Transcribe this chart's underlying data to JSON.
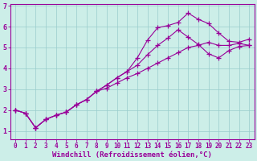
{
  "background_color": "#cceee8",
  "grid_color": "#99cccc",
  "line_color": "#990099",
  "xlabel": "Windchill (Refroidissement éolien,°C)",
  "xlim": [
    -0.5,
    23.5
  ],
  "ylim": [
    0.6,
    7.1
  ],
  "yticks": [
    1,
    2,
    3,
    4,
    5,
    6,
    7
  ],
  "xticks": [
    0,
    1,
    2,
    3,
    4,
    5,
    6,
    7,
    8,
    9,
    10,
    11,
    12,
    13,
    14,
    15,
    16,
    17,
    18,
    19,
    20,
    21,
    22,
    23
  ],
  "line1_x": [
    0,
    1,
    2,
    3,
    4,
    5,
    6,
    7,
    8,
    9,
    10,
    11,
    12,
    13,
    14,
    15,
    16,
    17,
    18,
    19,
    20,
    21,
    22,
    23
  ],
  "line1_y": [
    2.0,
    1.85,
    1.15,
    1.55,
    1.75,
    1.9,
    2.25,
    2.5,
    2.9,
    3.2,
    3.55,
    3.85,
    4.5,
    5.35,
    5.95,
    6.05,
    6.2,
    6.65,
    6.35,
    6.15,
    5.7,
    5.3,
    5.25,
    5.4
  ],
  "line2_x": [
    0,
    1,
    2,
    3,
    4,
    5,
    6,
    7,
    8,
    9,
    10,
    11,
    12,
    13,
    14,
    15,
    16,
    17,
    18,
    19,
    20,
    21,
    22,
    23
  ],
  "line2_y": [
    2.0,
    1.85,
    1.15,
    1.55,
    1.75,
    1.9,
    2.25,
    2.5,
    2.9,
    3.2,
    3.55,
    3.85,
    4.15,
    4.65,
    5.1,
    5.45,
    5.85,
    5.5,
    5.15,
    4.7,
    4.5,
    4.85,
    5.05,
    5.1
  ],
  "line3_x": [
    0,
    1,
    2,
    3,
    4,
    5,
    6,
    7,
    8,
    9,
    10,
    11,
    12,
    13,
    14,
    15,
    16,
    17,
    18,
    19,
    20,
    21,
    22,
    23
  ],
  "line3_y": [
    2.0,
    1.85,
    1.15,
    1.55,
    1.75,
    1.9,
    2.25,
    2.5,
    2.9,
    3.05,
    3.3,
    3.55,
    3.75,
    4.0,
    4.25,
    4.5,
    4.75,
    5.0,
    5.1,
    5.25,
    5.1,
    5.1,
    5.2,
    5.1
  ],
  "xlabel_fontsize": 6.5,
  "tick_fontsize": 5.5
}
